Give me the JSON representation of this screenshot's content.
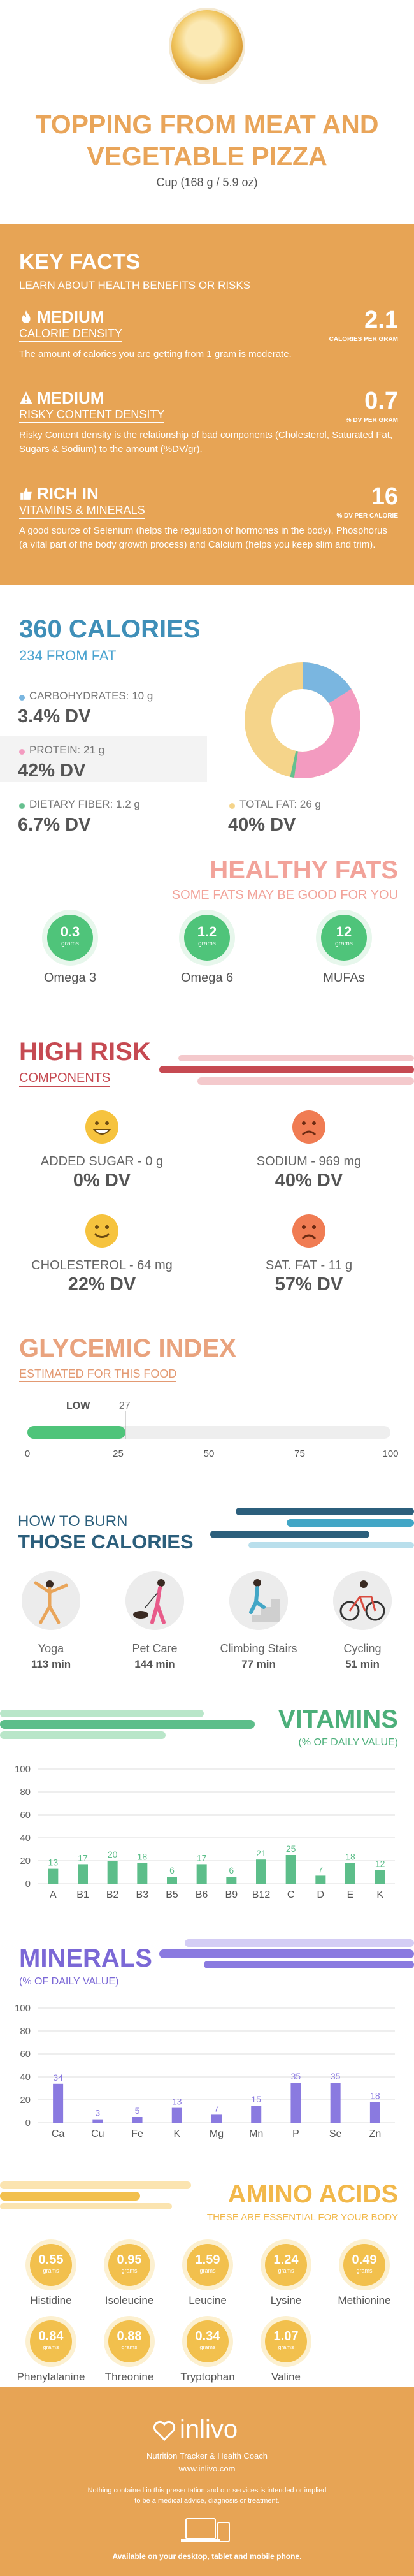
{
  "header": {
    "title_line1": "TOPPING FROM MEAT AND",
    "title_line2": "VEGETABLE PIZZA",
    "serving": "Cup (168 g / 5.9 oz)"
  },
  "key_facts": {
    "title": "KEY FACTS",
    "subtitle": "LEARN ABOUT HEALTH BENEFITS OR RISKS",
    "items": [
      {
        "level": "MEDIUM",
        "category": "CALORIE DENSITY",
        "value": "2.1",
        "unit": "CALORIES PER GRAM",
        "description": "The amount of calories you are getting from 1 gram is moderate."
      },
      {
        "level": "MEDIUM",
        "category": "RISKY CONTENT DENSITY",
        "value": "0.7",
        "unit": "% DV PER GRAM",
        "description": "Risky Content density is the relationship of bad components (Cholesterol, Saturated Fat, Sugars & Sodium) to the amount (%DV/gr)."
      },
      {
        "level": "RICH IN",
        "category": "VITAMINS & MINERALS",
        "value": "16",
        "unit": "% DV PER CALORIE",
        "description": "A good source of Selenium (helps the regulation of hormones in the body), Phosphorus (a vital part of the body growth process) and Calcium (helps you keep slim and trim)."
      }
    ]
  },
  "calories": {
    "title": "360 CALORIES",
    "subtitle": "234 FROM FAT",
    "macros": [
      {
        "label": "CARBOHYDRATES: 10 g",
        "dv": "3.4% DV",
        "color": "#7ab6e0"
      },
      {
        "label": "PROTEIN: 21 g",
        "dv": "42% DV",
        "color": "#f39bc0"
      },
      {
        "label": "DIETARY FIBER: 1.2 g",
        "dv": "6.7% DV",
        "color": "#66c08f"
      },
      {
        "label": "TOTAL FAT: 26 g",
        "dv": "40% DV",
        "color": "#f5d48a"
      }
    ]
  },
  "healthy_fats": {
    "title": "HEALTHY FATS",
    "subtitle": "SOME FATS MAY BE GOOD FOR YOU",
    "items": [
      {
        "value": "0.3",
        "unit": "grams",
        "name": "Omega 3"
      },
      {
        "value": "1.2",
        "unit": "grams",
        "name": "Omega 6"
      },
      {
        "value": "12",
        "unit": "grams",
        "name": "MUFAs"
      }
    ]
  },
  "high_risk": {
    "title": "HIGH RISK",
    "subtitle": "COMPONENTS",
    "items": [
      {
        "label": "ADDED SUGAR - 0 g",
        "dv": "0% DV",
        "mood": "happy"
      },
      {
        "label": "SODIUM - 969 mg",
        "dv": "40% DV",
        "mood": "sad"
      },
      {
        "label": "CHOLESTEROL - 64 mg",
        "dv": "22% DV",
        "mood": "happy"
      },
      {
        "label": "SAT. FAT - 11 g",
        "dv": "57% DV",
        "mood": "sad"
      }
    ]
  },
  "glycemic": {
    "title": "GLYCEMIC INDEX",
    "subtitle": "ESTIMATED FOR THIS FOOD",
    "level": "LOW",
    "value": 27,
    "ticks": [
      "0",
      "25",
      "50",
      "75",
      "100"
    ]
  },
  "burn": {
    "title_line1": "HOW TO BURN",
    "title_line2": "THOSE CALORIES",
    "activities": [
      {
        "name": "Yoga",
        "minutes": "113 min",
        "icon": "yoga-icon"
      },
      {
        "name": "Pet Care",
        "minutes": "144 min",
        "icon": "dog-walking-icon"
      },
      {
        "name": "Climbing Stairs",
        "minutes": "77 min",
        "icon": "stairs-icon"
      },
      {
        "name": "Cycling",
        "minutes": "51 min",
        "icon": "bicycle-icon"
      }
    ]
  },
  "vitamins": {
    "title": "VITAMINS",
    "subtitle": "(% OF DAILY VALUE)"
  },
  "minerals": {
    "title": "MINERALS",
    "subtitle": "(% OF DAILY VALUE)"
  },
  "chart_data": [
    {
      "type": "bar",
      "categories": [
        "A",
        "B1",
        "B2",
        "B3",
        "B5",
        "B6",
        "B9",
        "B12",
        "C",
        "D",
        "E",
        "K"
      ],
      "values": [
        13,
        17,
        20,
        18,
        6,
        17,
        6,
        21,
        25,
        7,
        18,
        12
      ],
      "ylim": [
        0,
        100
      ],
      "yticks": [
        0,
        20,
        40,
        60,
        80,
        100
      ],
      "color": "#5dbe8a"
    },
    {
      "type": "bar",
      "categories": [
        "Ca",
        "Cu",
        "Fe",
        "K",
        "Mg",
        "Mn",
        "P",
        "Se",
        "Zn"
      ],
      "values": [
        34,
        3,
        5,
        13,
        7,
        15,
        35,
        35,
        18
      ],
      "ylim": [
        0,
        100
      ],
      "yticks": [
        0,
        20,
        40,
        60,
        80,
        100
      ],
      "color": "#8a7ae0"
    }
  ],
  "amino": {
    "title": "AMINO ACIDS",
    "subtitle": "THESE ARE ESSENTIAL FOR YOUR BODY",
    "unit": "grams",
    "items": [
      {
        "name": "Histidine",
        "value": "0.55"
      },
      {
        "name": "Isoleucine",
        "value": "0.95"
      },
      {
        "name": "Leucine",
        "value": "1.59"
      },
      {
        "name": "Lysine",
        "value": "1.24"
      },
      {
        "name": "Methionine",
        "value": "0.49"
      },
      {
        "name": "Phenylalanine",
        "value": "0.84"
      },
      {
        "name": "Threonine",
        "value": "0.88"
      },
      {
        "name": "Tryptophan",
        "value": "0.34"
      },
      {
        "name": "Valine",
        "value": "1.07"
      }
    ]
  },
  "footer": {
    "logo": "inlivo",
    "tagline": "Nutrition Tracker & Health Coach",
    "url": "www.inlivo.com",
    "disclaimer_line1": "Nothing contained in this presentation and our services is intended or implied",
    "disclaimer_line2": "to be a medical advice, diagnosis or treatment.",
    "availability": "Available on your desktop, tablet and mobile phone."
  }
}
